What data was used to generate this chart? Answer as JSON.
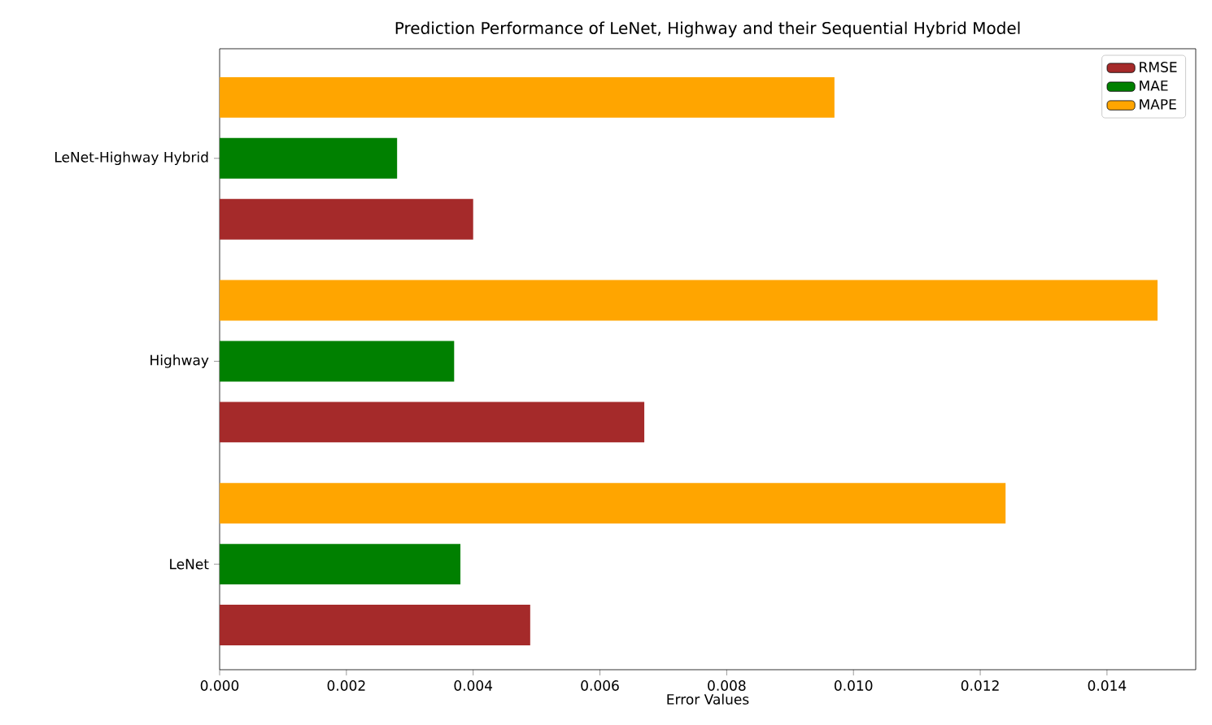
{
  "chart_data": {
    "type": "bar",
    "orientation": "horizontal",
    "title": "Prediction Performance of LeNet, Highway and their Sequential Hybrid Model",
    "xlabel": "Error Values",
    "categories": [
      "LeNet-Highway Hybrid",
      "Highway",
      "LeNet"
    ],
    "series": [
      {
        "name": "RMSE",
        "color": "#a52a2a",
        "values": [
          0.004,
          0.0067,
          0.0049
        ]
      },
      {
        "name": "MAE",
        "color": "#008000",
        "values": [
          0.0028,
          0.0037,
          0.0038
        ]
      },
      {
        "name": "MAPE",
        "color": "#ffa500",
        "values": [
          0.0097,
          0.0148,
          0.0124
        ]
      }
    ],
    "xlim": [
      0,
      0.0154
    ],
    "xticks": [
      {
        "value": 0,
        "label": "0.000"
      },
      {
        "value": 0.002,
        "label": "0.002"
      },
      {
        "value": 0.004,
        "label": "0.004"
      },
      {
        "value": 0.006,
        "label": "0.006"
      },
      {
        "value": 0.008,
        "label": "0.008"
      },
      {
        "value": 0.01,
        "label": "0.010"
      },
      {
        "value": 0.012,
        "label": "0.012"
      },
      {
        "value": 0.014,
        "label": "0.014"
      }
    ],
    "legend": "top right"
  }
}
